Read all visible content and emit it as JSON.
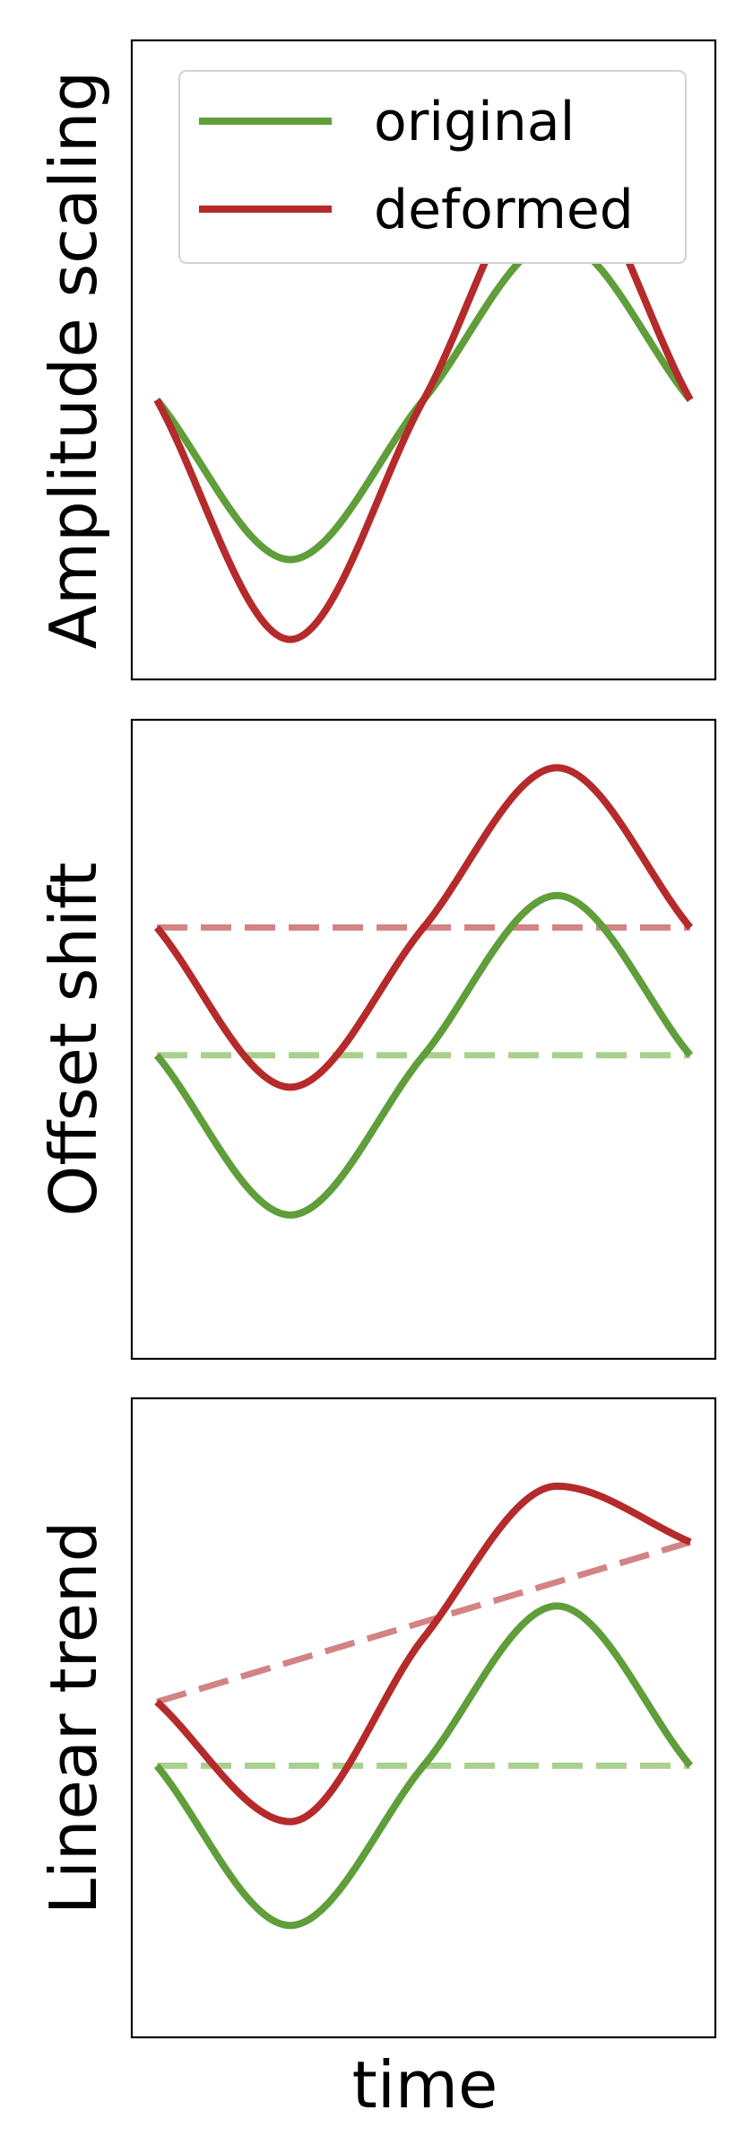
{
  "colors": {
    "original": "#5f9e3a",
    "deformed": "#b52a2a",
    "original_baseline": "#a9d08e",
    "deformed_baseline": "#d38383"
  },
  "legend": {
    "original": "original",
    "deformed": "deformed",
    "placement": "top-right, panel 1"
  },
  "xlabel": "time",
  "chart_data": [
    {
      "type": "line",
      "ylabel": "Amplitude scaling",
      "x": [
        0,
        0.25,
        0.5,
        0.75,
        1.0
      ],
      "ylim": [
        -1.75,
        2.25
      ],
      "series": [
        {
          "name": "original",
          "values": [
            0,
            -1.0,
            0,
            1.0,
            0
          ]
        },
        {
          "name": "deformed",
          "values": [
            0,
            -1.5,
            0,
            1.5,
            0
          ]
        }
      ],
      "baselines": [],
      "xticks": false,
      "yticks": false,
      "grid": false,
      "legend": true
    },
    {
      "type": "line",
      "ylabel": "Offset shift",
      "x": [
        0,
        0.25,
        0.5,
        0.75,
        1.0
      ],
      "ylim": [
        -1.9,
        2.1
      ],
      "series": [
        {
          "name": "original",
          "values": [
            0,
            -1.0,
            0,
            1.0,
            0
          ]
        },
        {
          "name": "deformed",
          "values": [
            0.8,
            -0.2,
            0.8,
            1.8,
            0.8
          ]
        }
      ],
      "baselines": [
        {
          "series": "original",
          "values": [
            0,
            0
          ]
        },
        {
          "series": "deformed",
          "values": [
            0.8,
            0.8
          ]
        }
      ],
      "xticks": false,
      "yticks": false,
      "grid": false
    },
    {
      "type": "line",
      "ylabel": "Linear trend",
      "x": [
        0,
        0.25,
        0.5,
        0.75,
        1.0
      ],
      "ylim": [
        -1.7,
        2.3
      ],
      "series": [
        {
          "name": "original",
          "values": [
            0,
            -1.0,
            0,
            1.0,
            0
          ]
        },
        {
          "name": "deformed",
          "values": [
            0.4,
            -0.35,
            0.8,
            1.75,
            1.4
          ]
        }
      ],
      "baselines": [
        {
          "series": "original",
          "values": [
            0,
            0
          ]
        },
        {
          "series": "deformed",
          "values": [
            0.4,
            1.4
          ]
        }
      ],
      "xticks": false,
      "yticks": false,
      "grid": false
    }
  ]
}
